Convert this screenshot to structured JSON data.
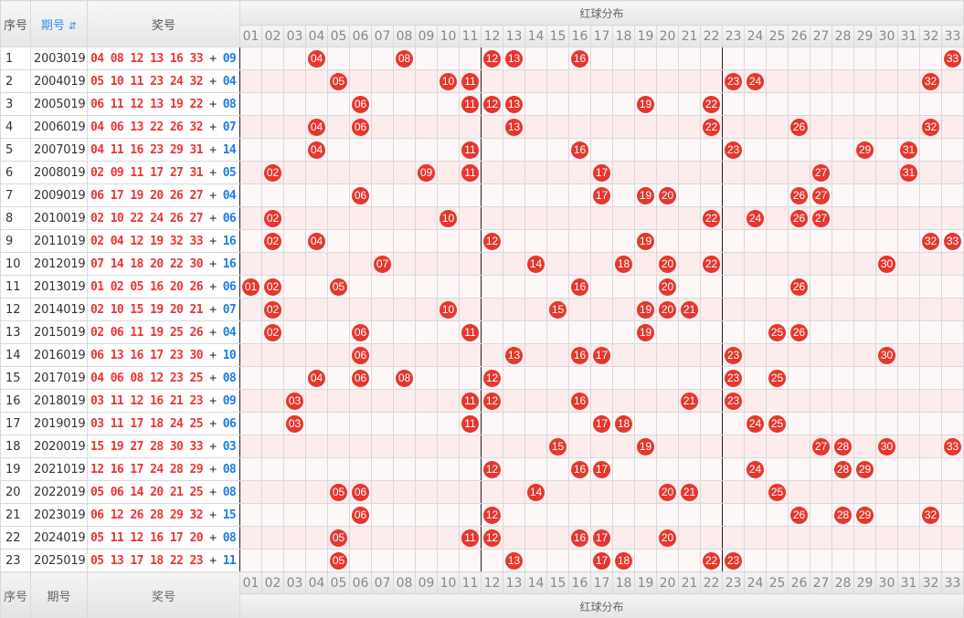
{
  "header": {
    "seq": "序号",
    "issue": "期号",
    "sort_icon": "⇵",
    "prize": "奖号",
    "red_dist": "红球分布"
  },
  "columns": [
    "01",
    "02",
    "03",
    "04",
    "05",
    "06",
    "07",
    "08",
    "09",
    "10",
    "11",
    "12",
    "13",
    "14",
    "15",
    "16",
    "17",
    "18",
    "19",
    "20",
    "21",
    "22",
    "23",
    "24",
    "25",
    "26",
    "27",
    "28",
    "29",
    "30",
    "31",
    "32",
    "33"
  ],
  "rows": [
    {
      "seq": "1",
      "issue": "2003019",
      "reds": [
        "04",
        "08",
        "12",
        "13",
        "16",
        "33"
      ],
      "blue": "09"
    },
    {
      "seq": "2",
      "issue": "2004019",
      "reds": [
        "05",
        "10",
        "11",
        "23",
        "24",
        "32"
      ],
      "blue": "04"
    },
    {
      "seq": "3",
      "issue": "2005019",
      "reds": [
        "06",
        "11",
        "12",
        "13",
        "19",
        "22"
      ],
      "blue": "08"
    },
    {
      "seq": "4",
      "issue": "2006019",
      "reds": [
        "04",
        "06",
        "13",
        "22",
        "26",
        "32"
      ],
      "blue": "07"
    },
    {
      "seq": "5",
      "issue": "2007019",
      "reds": [
        "04",
        "11",
        "16",
        "23",
        "29",
        "31"
      ],
      "blue": "14"
    },
    {
      "seq": "6",
      "issue": "2008019",
      "reds": [
        "02",
        "09",
        "11",
        "17",
        "27",
        "31"
      ],
      "blue": "05"
    },
    {
      "seq": "7",
      "issue": "2009019",
      "reds": [
        "06",
        "17",
        "19",
        "20",
        "26",
        "27"
      ],
      "blue": "04"
    },
    {
      "seq": "8",
      "issue": "2010019",
      "reds": [
        "02",
        "10",
        "22",
        "24",
        "26",
        "27"
      ],
      "blue": "06"
    },
    {
      "seq": "9",
      "issue": "2011019",
      "reds": [
        "02",
        "04",
        "12",
        "19",
        "32",
        "33"
      ],
      "blue": "16"
    },
    {
      "seq": "10",
      "issue": "2012019",
      "reds": [
        "07",
        "14",
        "18",
        "20",
        "22",
        "30"
      ],
      "blue": "16"
    },
    {
      "seq": "11",
      "issue": "2013019",
      "reds": [
        "01",
        "02",
        "05",
        "16",
        "20",
        "26"
      ],
      "blue": "06"
    },
    {
      "seq": "12",
      "issue": "2014019",
      "reds": [
        "02",
        "10",
        "15",
        "19",
        "20",
        "21"
      ],
      "blue": "07"
    },
    {
      "seq": "13",
      "issue": "2015019",
      "reds": [
        "02",
        "06",
        "11",
        "19",
        "25",
        "26"
      ],
      "blue": "04"
    },
    {
      "seq": "14",
      "issue": "2016019",
      "reds": [
        "06",
        "13",
        "16",
        "17",
        "23",
        "30"
      ],
      "blue": "10"
    },
    {
      "seq": "15",
      "issue": "2017019",
      "reds": [
        "04",
        "06",
        "08",
        "12",
        "23",
        "25"
      ],
      "blue": "08"
    },
    {
      "seq": "16",
      "issue": "2018019",
      "reds": [
        "03",
        "11",
        "12",
        "16",
        "21",
        "23"
      ],
      "blue": "09"
    },
    {
      "seq": "17",
      "issue": "2019019",
      "reds": [
        "03",
        "11",
        "17",
        "18",
        "24",
        "25"
      ],
      "blue": "06"
    },
    {
      "seq": "18",
      "issue": "2020019",
      "reds": [
        "15",
        "19",
        "27",
        "28",
        "30",
        "33"
      ],
      "blue": "03"
    },
    {
      "seq": "19",
      "issue": "2021019",
      "reds": [
        "12",
        "16",
        "17",
        "24",
        "28",
        "29"
      ],
      "blue": "08"
    },
    {
      "seq": "20",
      "issue": "2022019",
      "reds": [
        "05",
        "06",
        "14",
        "20",
        "21",
        "25"
      ],
      "blue": "08"
    },
    {
      "seq": "21",
      "issue": "2023019",
      "reds": [
        "06",
        "12",
        "26",
        "28",
        "29",
        "32"
      ],
      "blue": "15"
    },
    {
      "seq": "22",
      "issue": "2024019",
      "reds": [
        "05",
        "11",
        "12",
        "16",
        "17",
        "20"
      ],
      "blue": "08"
    },
    {
      "seq": "23",
      "issue": "2025019",
      "reds": [
        "05",
        "13",
        "17",
        "18",
        "22",
        "23"
      ],
      "blue": "11"
    }
  ],
  "colors": {
    "red_ball": "#e5372e",
    "blue_number": "#1c7de8",
    "red_number": "#e33"
  }
}
